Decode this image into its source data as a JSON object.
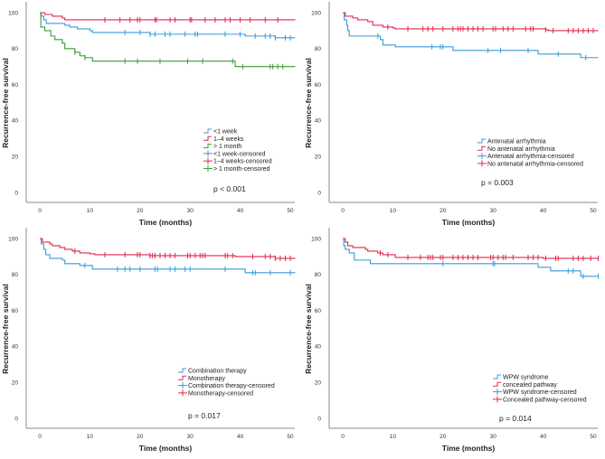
{
  "chart_data": [
    {
      "type": "line",
      "subtype": "kaplan-meier",
      "xlabel": "Time (months)",
      "ylabel": "Recurrence-free survival",
      "xlim": [
        0,
        51
      ],
      "ylim": [
        0,
        100
      ],
      "xticks": [
        0,
        10,
        20,
        30,
        40,
        50
      ],
      "yticks": [
        0,
        20,
        40,
        60,
        80,
        100
      ],
      "p_value": "p < 0.001",
      "legend": [
        "<1 week",
        "1–4 weeks",
        "> 1 month",
        "<1 week-censored",
        "1–4 weeks-censored",
        "> 1 month-censored"
      ],
      "legend_placement": "bottom-right",
      "series": [
        {
          "name": "<1 week",
          "color": "#3a9ad9",
          "steps": [
            [
              0,
              100
            ],
            [
              0.3,
              98
            ],
            [
              0.8,
              96
            ],
            [
              1.3,
              94
            ],
            [
              5,
              93
            ],
            [
              6,
              92
            ],
            [
              7.5,
              91
            ],
            [
              10,
              90
            ],
            [
              10.5,
              89
            ],
            [
              22,
              88
            ],
            [
              41,
              87
            ],
            [
              47,
              86
            ],
            [
              51,
              86
            ]
          ],
          "censored": [
            17,
            20,
            22,
            23,
            25,
            26,
            29,
            31,
            31.5,
            37,
            40,
            43,
            45,
            46,
            47,
            49,
            50
          ]
        },
        {
          "name": "1–4 weeks",
          "color": "#e0284f",
          "steps": [
            [
              0,
              100
            ],
            [
              1,
              99
            ],
            [
              2.5,
              98
            ],
            [
              4.5,
              97
            ],
            [
              5,
              96
            ],
            [
              51,
              96
            ]
          ],
          "censored": [
            13,
            16,
            18,
            19.5,
            20,
            23,
            23.3,
            26,
            27,
            30,
            30.3,
            33,
            35,
            37,
            38,
            40,
            42,
            45,
            47.5
          ]
        },
        {
          "name": "> 1 month",
          "color": "#3f9a3a",
          "steps": [
            [
              0,
              100
            ],
            [
              0.2,
              92
            ],
            [
              1,
              90
            ],
            [
              2.2,
              87
            ],
            [
              3,
              85
            ],
            [
              4.5,
              83
            ],
            [
              5,
              80
            ],
            [
              7,
              78
            ],
            [
              8,
              76
            ],
            [
              9,
              75
            ],
            [
              10.5,
              73
            ],
            [
              39,
              70
            ],
            [
              51,
              70
            ]
          ],
          "censored": [
            7,
            9,
            17,
            19.5,
            24,
            29.5,
            32.5,
            38.5,
            40.5,
            46,
            46.5,
            47.5,
            48.5
          ]
        }
      ]
    },
    {
      "type": "line",
      "subtype": "kaplan-meier",
      "xlabel": "Time (months)",
      "ylabel": "Recurrence-free survival",
      "xlim": [
        0,
        51
      ],
      "ylim": [
        0,
        100
      ],
      "xticks": [
        0,
        10,
        20,
        30,
        40,
        50
      ],
      "yticks": [
        0,
        20,
        40,
        60,
        80,
        100
      ],
      "p_value": "p = 0.003",
      "legend": [
        "Antenatal arrhythmia",
        "No antenatal arrhythmia",
        "Antenatal arrhythmia-censored",
        "No antenatal arrhythmia-censored"
      ],
      "legend_placement": "bottom-right",
      "series": [
        {
          "name": "Antenatal arrhythmia",
          "color": "#3a9ad9",
          "steps": [
            [
              0,
              100
            ],
            [
              0.3,
              96
            ],
            [
              0.8,
              93
            ],
            [
              1,
              90
            ],
            [
              1.3,
              87
            ],
            [
              7.5,
              85
            ],
            [
              8,
              82
            ],
            [
              10.5,
              81
            ],
            [
              22,
              79
            ],
            [
              39,
              77
            ],
            [
              47.5,
              75
            ],
            [
              51,
              75
            ]
          ],
          "censored": [
            7,
            17.8,
            19.5,
            20,
            29,
            31.5,
            37,
            43,
            48.5
          ]
        },
        {
          "name": "No antenatal arrhythmia",
          "color": "#e0284f",
          "steps": [
            [
              0,
              100
            ],
            [
              0.5,
              98
            ],
            [
              2,
              97
            ],
            [
              3,
              96
            ],
            [
              5,
              95
            ],
            [
              6,
              93
            ],
            [
              8,
              92
            ],
            [
              10,
              91.5
            ],
            [
              10.5,
              91
            ],
            [
              40.5,
              90.5
            ],
            [
              41,
              90
            ],
            [
              51,
              90
            ]
          ],
          "censored": [
            9,
            13,
            16,
            17,
            18,
            20,
            22,
            23,
            23.5,
            24,
            25,
            26,
            27,
            28,
            30,
            30.5,
            32,
            33,
            34,
            36.5,
            37.5,
            38,
            40.5,
            42,
            45,
            46,
            47,
            48,
            49,
            50
          ]
        }
      ]
    },
    {
      "type": "line",
      "subtype": "kaplan-meier",
      "xlabel": "Time (months)",
      "ylabel": "Recurrence-free survival",
      "xlim": [
        0,
        51
      ],
      "ylim": [
        0,
        100
      ],
      "xticks": [
        0,
        10,
        20,
        30,
        40,
        50
      ],
      "yticks": [
        0,
        20,
        40,
        60,
        80,
        100
      ],
      "p_value": "p = 0.017",
      "legend": [
        "Combination therapy",
        "Monotherapy",
        "Combination therapy-censored",
        "Monotherapy-censored"
      ],
      "legend_placement": "bottom-right",
      "series": [
        {
          "name": "Combination therapy",
          "color": "#3a9ad9",
          "steps": [
            [
              0,
              100
            ],
            [
              0.3,
              97
            ],
            [
              0.8,
              94
            ],
            [
              1.2,
              91
            ],
            [
              2,
              89
            ],
            [
              4.5,
              88
            ],
            [
              5,
              86
            ],
            [
              8,
              85
            ],
            [
              10.5,
              83
            ],
            [
              41,
              81
            ],
            [
              51,
              81
            ]
          ],
          "censored": [
            9,
            15.5,
            17,
            18,
            20,
            23,
            23.5,
            26,
            27,
            29,
            30,
            37,
            42.5,
            43,
            46,
            50
          ]
        },
        {
          "name": "Monotherapy",
          "color": "#e0284f",
          "steps": [
            [
              0,
              100
            ],
            [
              0.5,
              98
            ],
            [
              2,
              97
            ],
            [
              2.5,
              96
            ],
            [
              4,
              95
            ],
            [
              5,
              94
            ],
            [
              6.5,
              93
            ],
            [
              8,
              92
            ],
            [
              10,
              91.5
            ],
            [
              11,
              91
            ],
            [
              22,
              90.5
            ],
            [
              39,
              90
            ],
            [
              47,
              89
            ],
            [
              51,
              89
            ]
          ],
          "censored": [
            7,
            13,
            17,
            19.5,
            20,
            22,
            22.5,
            23,
            24,
            25,
            26,
            27,
            29.5,
            30,
            31,
            32,
            32.5,
            33,
            37,
            37.5,
            38.5,
            42.5,
            45,
            46,
            47,
            48,
            49,
            50
          ]
        }
      ]
    },
    {
      "type": "line",
      "subtype": "kaplan-meier",
      "xlabel": "Time (months)",
      "ylabel": "Recurrence-free survival",
      "xlim": [
        0,
        51
      ],
      "ylim": [
        0,
        100
      ],
      "xticks": [
        0,
        10,
        20,
        30,
        40,
        50
      ],
      "yticks": [
        0,
        20,
        40,
        60,
        80,
        100
      ],
      "p_value": "p = 0.014",
      "legend": [
        "WPW syndrome",
        "concealed pathway",
        "WPW syndrome-censored",
        "Concealed pathway-censored"
      ],
      "legend_placement": "bottom-right",
      "series": [
        {
          "name": "WPW syndrome",
          "color": "#3a9ad9",
          "steps": [
            [
              0,
              100
            ],
            [
              0.2,
              96
            ],
            [
              0.5,
              94
            ],
            [
              1.3,
              92
            ],
            [
              2.3,
              88
            ],
            [
              5.5,
              86
            ],
            [
              39,
              84
            ],
            [
              41.5,
              82
            ],
            [
              47.5,
              79
            ],
            [
              51,
              79
            ]
          ],
          "censored": [
            20,
            30,
            30.3,
            45,
            46,
            48,
            51
          ]
        },
        {
          "name": "concealed pathway",
          "color": "#e0284f",
          "steps": [
            [
              0,
              100
            ],
            [
              0.5,
              98
            ],
            [
              1,
              96
            ],
            [
              2,
              95
            ],
            [
              4.5,
              94
            ],
            [
              5,
              93
            ],
            [
              7,
              92
            ],
            [
              8,
              91
            ],
            [
              10.5,
              89.5
            ],
            [
              40,
              89
            ],
            [
              51,
              89
            ]
          ],
          "censored": [
            7.5,
            9,
            13,
            15.5,
            17,
            17.5,
            18,
            19.5,
            20,
            22,
            23,
            24,
            25,
            26,
            27,
            29.5,
            30,
            31,
            32,
            32.5,
            34,
            37,
            38,
            39,
            40.5,
            42.5,
            43,
            46,
            47,
            48,
            49.5,
            51
          ]
        }
      ]
    }
  ]
}
